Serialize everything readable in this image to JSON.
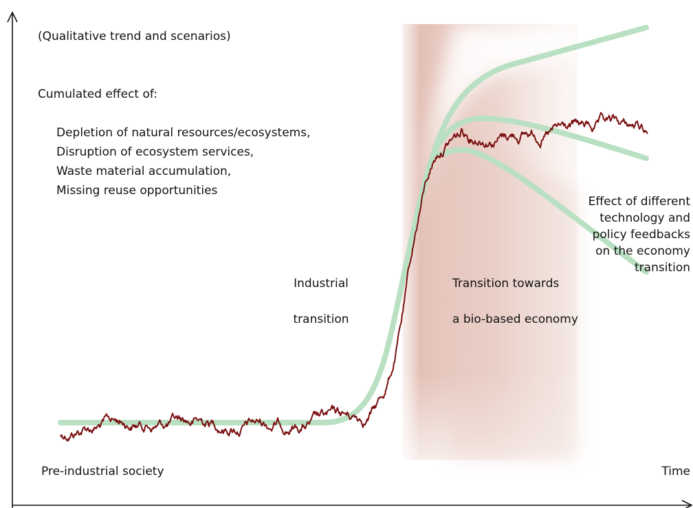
{
  "title": "(Qualitative trend and scenarios)",
  "effects": {
    "heading": "Cumulated effect of:",
    "items": [
      "Depletion of natural resources/ecosystems,",
      "Disruption of ecosystem services,",
      "Waste material accumulation,",
      "Missing reuse opportunities"
    ]
  },
  "industrial_label": [
    "Industrial",
    "transition"
  ],
  "bio_label": [
    "Transition towards",
    "a bio-based economy"
  ],
  "feedback_label": [
    "Effect of different",
    "technology and",
    "policy feedbacks",
    "on the economy",
    "transition"
  ],
  "start_label": "Pre-industrial society",
  "x_axis_label": "Time"
}
